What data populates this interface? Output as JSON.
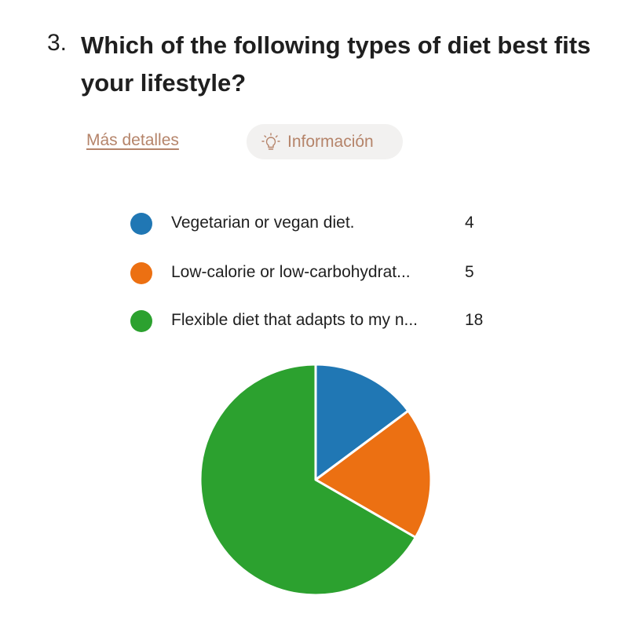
{
  "question": {
    "number": "3.",
    "title": "Which of the following types of diet best fits your lifestyle?"
  },
  "actions": {
    "details_label": "Más detalles",
    "info_label": "Información",
    "info_icon": "lightbulb-icon"
  },
  "chart_data": {
    "type": "pie",
    "categories": [
      "Vegetarian or vegan diet.",
      "Low-calorie or low-carbohydrat...",
      "Flexible diet that adapts to my n..."
    ],
    "values": [
      4,
      5,
      18
    ],
    "colors": [
      "#2077b4",
      "#ec7012",
      "#2ca12f"
    ],
    "legend_position": "top",
    "start_angle": "12 o'clock",
    "direction": "clockwise"
  }
}
